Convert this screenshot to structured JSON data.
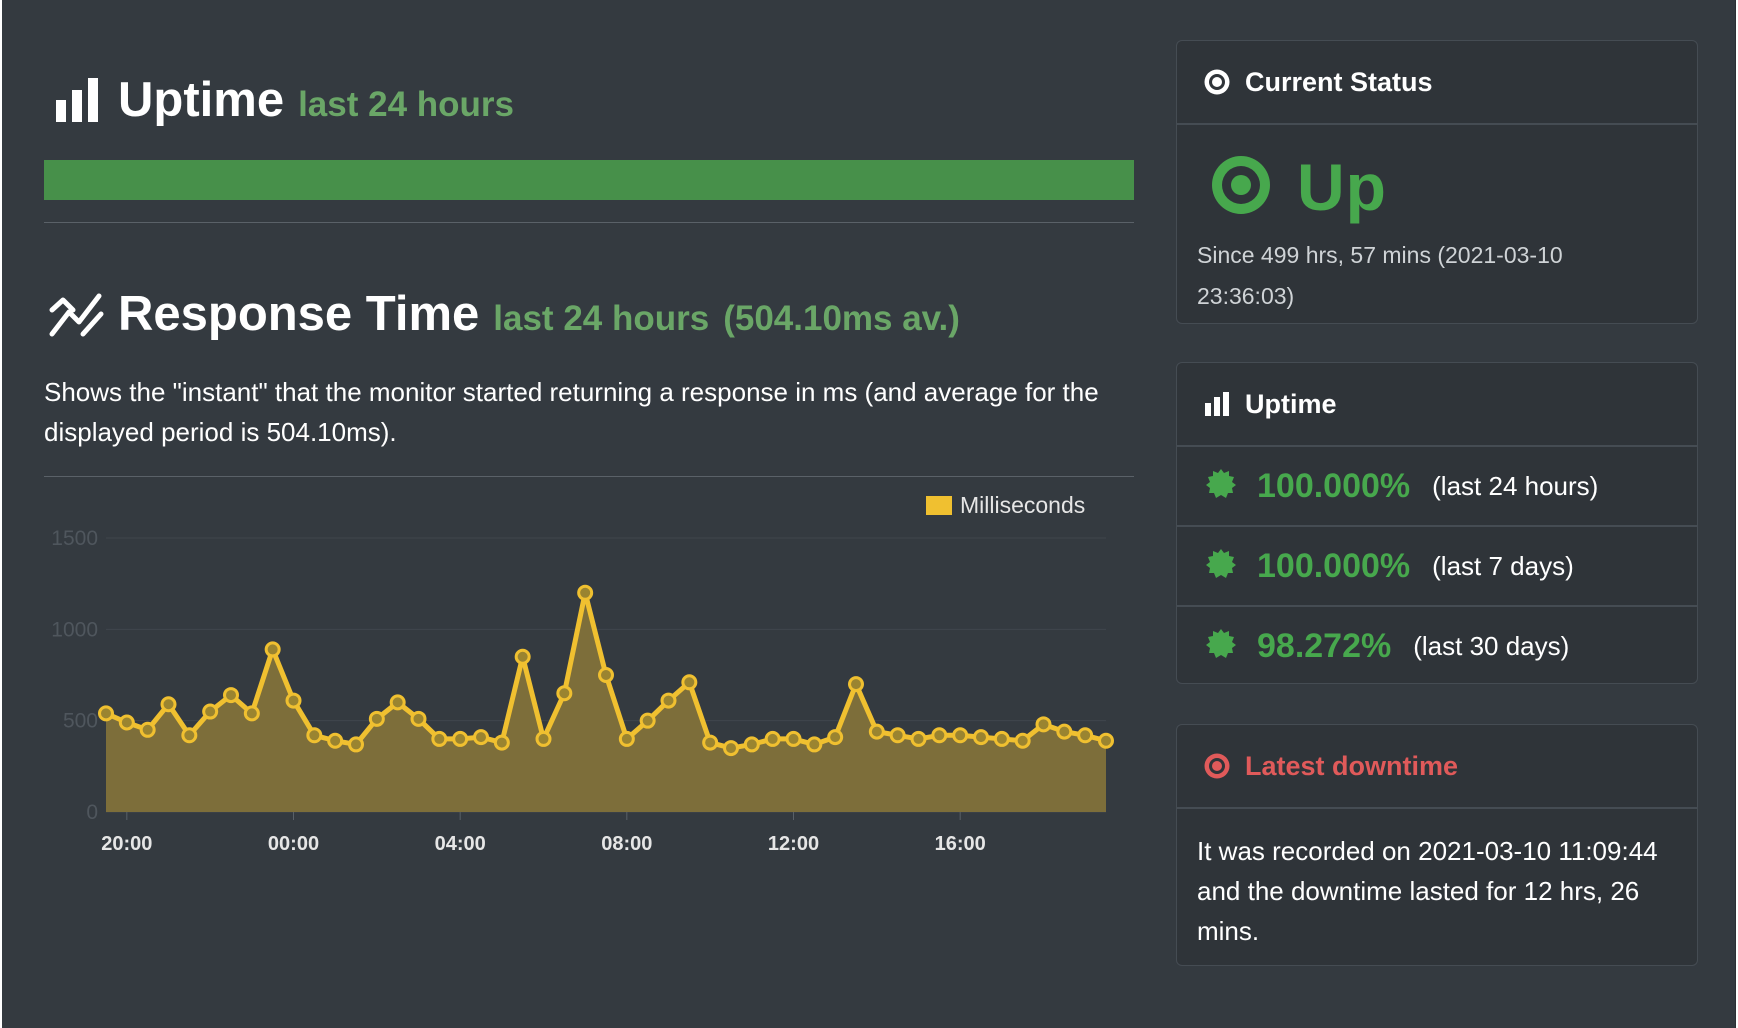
{
  "uptime_section": {
    "title": "Uptime",
    "subtitle": "last 24 hours"
  },
  "response_section": {
    "title": "Response Time",
    "subtitle": "last 24 hours",
    "average": "(504.10ms av.)",
    "description": "Shows the \"instant\" that the monitor started returning a response in ms (and average for the displayed period is 504.10ms)."
  },
  "chart_data": {
    "type": "area",
    "legend": [
      "Milliseconds"
    ],
    "legend_placement": "top-right",
    "ylim": [
      0,
      1500
    ],
    "yticks": [
      0,
      500,
      1000,
      1500
    ],
    "x_tick_labels": [
      "20:00",
      "00:00",
      "04:00",
      "08:00",
      "12:00",
      "16:00"
    ],
    "grid": true,
    "series": [
      {
        "name": "Milliseconds",
        "color": "#f0c030",
        "values": [
          540,
          490,
          450,
          590,
          420,
          550,
          640,
          540,
          890,
          610,
          420,
          390,
          370,
          510,
          600,
          510,
          400,
          400,
          410,
          380,
          850,
          400,
          650,
          1200,
          750,
          400,
          500,
          610,
          710,
          380,
          350,
          370,
          400,
          400,
          370,
          410,
          700,
          440,
          420,
          400,
          420,
          420,
          410,
          400,
          390,
          480,
          440,
          420,
          390
        ]
      }
    ]
  },
  "colors": {
    "background": "#343a40",
    "success": "#47a84d",
    "danger": "#e05a5a",
    "chart_line": "#f0c030",
    "chart_fill": "#7d6e3a"
  },
  "status_card": {
    "header": "Current Status",
    "status": "Up",
    "since": "Since 499 hrs, 57 mins (2021-03-10 23:36:03)"
  },
  "uptime_card": {
    "header": "Uptime",
    "rows": [
      {
        "pct": "100.000%",
        "period": "(last 24 hours)"
      },
      {
        "pct": "100.000%",
        "period": "(last 7 days)"
      },
      {
        "pct": "98.272%",
        "period": "(last 30 days)"
      }
    ]
  },
  "downtime_card": {
    "header": "Latest downtime",
    "text": "It was recorded on 2021-03-10 11:09:44 and the downtime lasted for 12 hrs, 26 mins."
  },
  "icons": {
    "uptime_heading": "bar-chart-icon",
    "response_heading": "line-chart-icon",
    "current_status": "dot-circle-icon",
    "up_status": "dot-circle-icon",
    "uptime_header": "bar-chart-icon",
    "uptime_rows": "certificate-icon",
    "latest_downtime": "dot-circle-icon"
  }
}
